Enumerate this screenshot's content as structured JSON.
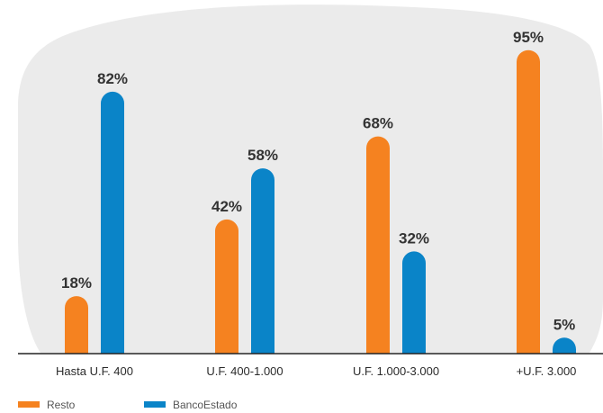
{
  "chart_data": {
    "type": "bar",
    "title": "",
    "xlabel": "",
    "ylabel": "",
    "ylim": [
      0,
      100
    ],
    "categories": [
      "Hasta U.F. 400",
      "U.F. 400-1.000",
      "U.F. 1.000-3.000",
      "+U.F. 3.000"
    ],
    "series": [
      {
        "name": "Resto",
        "color": "#F58220",
        "values": [
          18,
          42,
          68,
          95
        ],
        "labels": [
          "18%",
          "42%",
          "68%",
          "95%"
        ]
      },
      {
        "name": "BancoEstado",
        "color": "#0A84C8",
        "values": [
          82,
          58,
          32,
          5
        ],
        "labels": [
          "82%",
          "58%",
          "32%",
          "5%"
        ]
      }
    ],
    "legend": "bottom-left",
    "grid": false,
    "background_color": "#EBEBEB"
  }
}
